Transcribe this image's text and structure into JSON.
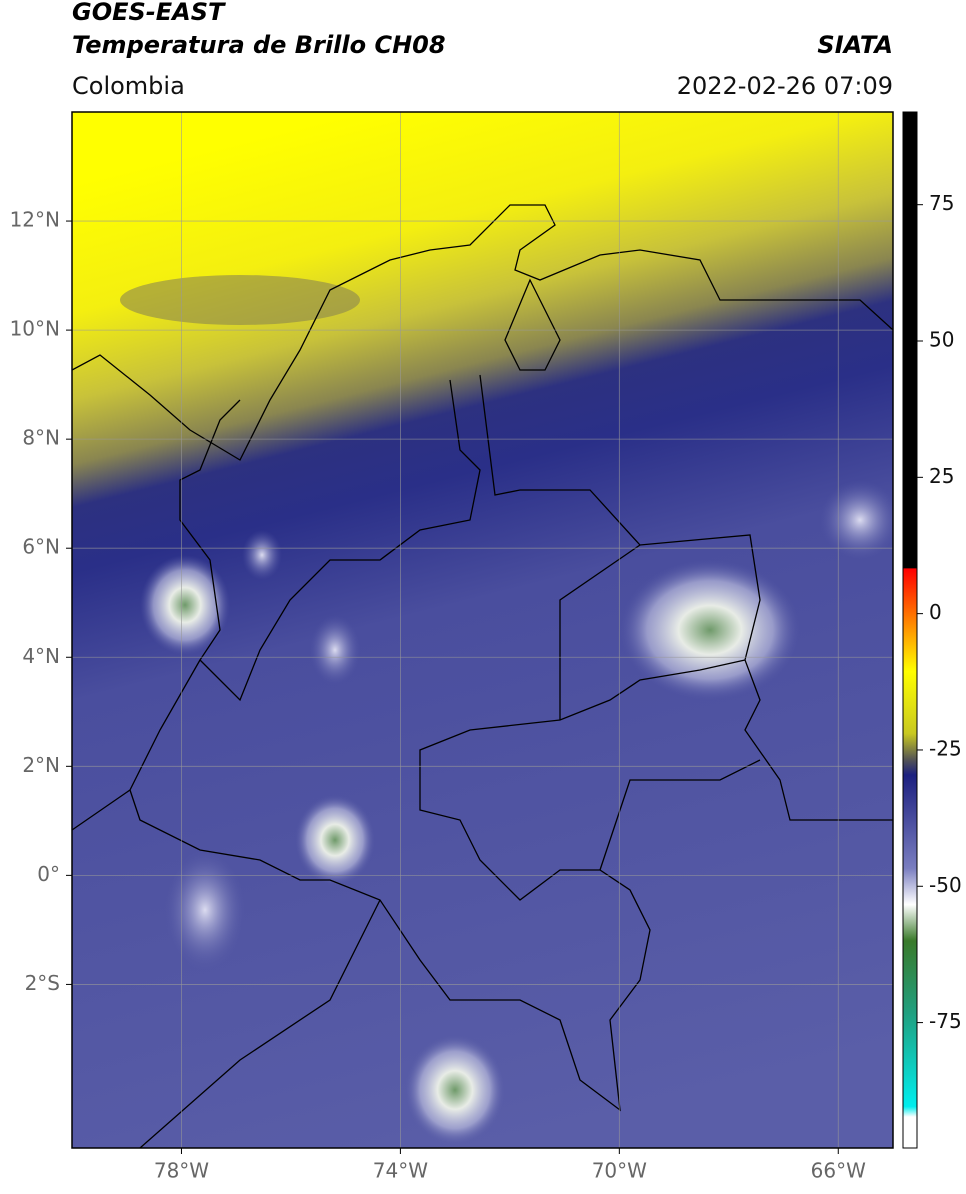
{
  "header": {
    "title_line1": "GOES-EAST",
    "title_line2": "Temperatura de Brillo CH08",
    "region": "Colombia",
    "source": "SIATA",
    "datetime": "2022-02-26 07:09"
  },
  "map": {
    "xlim": [
      -80,
      -65
    ],
    "ylim": [
      -5,
      14
    ],
    "xticks": [
      {
        "value": -78,
        "label": "78°W"
      },
      {
        "value": -74,
        "label": "74°W"
      },
      {
        "value": -70,
        "label": "70°W"
      },
      {
        "value": -66,
        "label": "66°W"
      }
    ],
    "yticks": [
      {
        "value": 12,
        "label": "12°N"
      },
      {
        "value": 10,
        "label": "10°N"
      },
      {
        "value": 8,
        "label": "8°N"
      },
      {
        "value": 6,
        "label": "6°N"
      },
      {
        "value": 4,
        "label": "4°N"
      },
      {
        "value": 2,
        "label": "2°N"
      },
      {
        "value": 0,
        "label": "0°"
      },
      {
        "value": -2,
        "label": "2°S"
      }
    ],
    "grid": true
  },
  "colorbar": {
    "ylim": [
      -98,
      92
    ],
    "yticks": [
      75,
      50,
      25,
      0,
      -25,
      -50,
      -75
    ]
  }
}
